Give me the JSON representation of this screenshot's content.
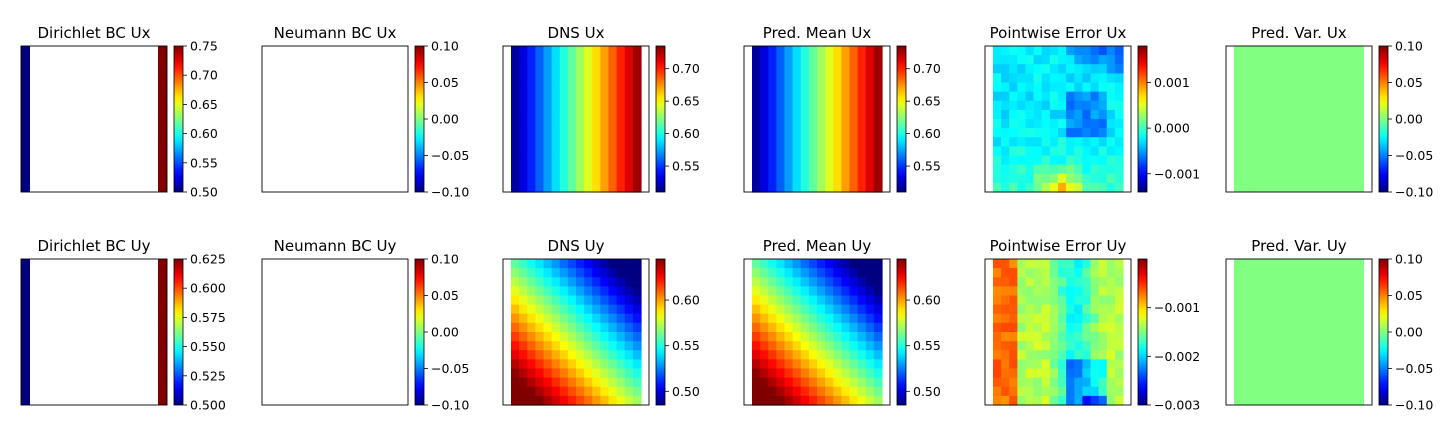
{
  "chart_data": [
    {
      "type": "heatmap",
      "title": "Dirichlet BC Ux",
      "field": "dirichlet",
      "params": {
        "left": 0.5,
        "right": 0.75
      },
      "colorbar": {
        "min": 0.5,
        "max": 0.75,
        "ticks": [
          0.5,
          0.55,
          0.6,
          0.65,
          0.7,
          0.75
        ],
        "tick_labels": [
          "0.50",
          "0.55",
          "0.60",
          "0.65",
          "0.70",
          "0.75"
        ]
      }
    },
    {
      "type": "heatmap",
      "title": "Neumann BC Ux",
      "field": "empty",
      "colorbar": {
        "min": -0.1,
        "max": 0.1,
        "ticks": [
          -0.1,
          -0.05,
          0,
          0.05,
          0.1
        ],
        "tick_labels": [
          "−0.10",
          "−0.05",
          "0.00",
          "0.05",
          "0.10"
        ]
      }
    },
    {
      "type": "heatmap",
      "title": "DNS Ux",
      "field": "linear_x",
      "grid": [
        16,
        16
      ],
      "params": {
        "min": 0.51,
        "max": 0.735
      },
      "colorbar": {
        "min": 0.51,
        "max": 0.735,
        "ticks": [
          0.55,
          0.6,
          0.65,
          0.7
        ],
        "tick_labels": [
          "0.55",
          "0.60",
          "0.65",
          "0.70"
        ]
      }
    },
    {
      "type": "heatmap",
      "title": "Pred. Mean Ux",
      "field": "linear_x",
      "grid": [
        16,
        16
      ],
      "params": {
        "min": 0.51,
        "max": 0.735
      },
      "colorbar": {
        "min": 0.51,
        "max": 0.735,
        "ticks": [
          0.55,
          0.6,
          0.65,
          0.7
        ],
        "tick_labels": [
          "0.55",
          "0.60",
          "0.65",
          "0.70"
        ]
      }
    },
    {
      "type": "heatmap",
      "title": "Pointwise Error Ux",
      "field": "error_ux",
      "grid": [
        16,
        16
      ],
      "colorbar": {
        "min": -0.0014,
        "max": 0.0018,
        "ticks": [
          -0.001,
          0,
          0.001
        ],
        "tick_labels": [
          "−0.001",
          "0.000",
          "0.001"
        ]
      }
    },
    {
      "type": "heatmap",
      "title": "Pred. Var. Ux",
      "field": "constant",
      "params": {
        "value": 0
      },
      "colorbar": {
        "min": -0.1,
        "max": 0.1,
        "ticks": [
          -0.1,
          -0.05,
          0,
          0.05,
          0.1
        ],
        "tick_labels": [
          "−0.10",
          "−0.05",
          "0.00",
          "0.05",
          "0.10"
        ]
      }
    },
    {
      "type": "heatmap",
      "title": "Dirichlet BC Uy",
      "field": "dirichlet",
      "params": {
        "left": 0.5,
        "right": 0.625
      },
      "colorbar": {
        "min": 0.5,
        "max": 0.625,
        "ticks": [
          0.5,
          0.525,
          0.55,
          0.575,
          0.6,
          0.625
        ],
        "tick_labels": [
          "0.500",
          "0.525",
          "0.550",
          "0.575",
          "0.600",
          "0.625"
        ]
      }
    },
    {
      "type": "heatmap",
      "title": "Neumann BC Uy",
      "field": "empty",
      "colorbar": {
        "min": -0.1,
        "max": 0.1,
        "ticks": [
          -0.1,
          -0.05,
          0,
          0.05,
          0.1
        ],
        "tick_labels": [
          "−0.10",
          "−0.05",
          "0.00",
          "0.05",
          "0.10"
        ]
      }
    },
    {
      "type": "heatmap",
      "title": "DNS Uy",
      "field": "diagonal",
      "grid": [
        16,
        16
      ],
      "params": {
        "min": 0.485,
        "max": 0.645
      },
      "colorbar": {
        "min": 0.485,
        "max": 0.645,
        "ticks": [
          0.5,
          0.55,
          0.6
        ],
        "tick_labels": [
          "0.50",
          "0.55",
          "0.60"
        ]
      }
    },
    {
      "type": "heatmap",
      "title": "Pred. Mean Uy",
      "field": "diagonal",
      "grid": [
        16,
        16
      ],
      "params": {
        "min": 0.485,
        "max": 0.645
      },
      "colorbar": {
        "min": 0.485,
        "max": 0.645,
        "ticks": [
          0.5,
          0.55,
          0.6
        ],
        "tick_labels": [
          "0.50",
          "0.55",
          "0.60"
        ]
      }
    },
    {
      "type": "heatmap",
      "title": "Pointwise Error Uy",
      "field": "error_uy",
      "grid": [
        16,
        16
      ],
      "colorbar": {
        "min": -0.003,
        "max": 0,
        "ticks": [
          -0.003,
          -0.002,
          -0.001
        ],
        "tick_labels": [
          "−0.003",
          "−0.002",
          "−0.001"
        ]
      }
    },
    {
      "type": "heatmap",
      "title": "Pred. Var. Uy",
      "field": "constant",
      "params": {
        "value": 0
      },
      "colorbar": {
        "min": -0.1,
        "max": 0.1,
        "ticks": [
          -0.1,
          -0.05,
          0,
          0.05,
          0.1
        ],
        "tick_labels": [
          "−0.10",
          "−0.05",
          "0.00",
          "0.05",
          "0.10"
        ]
      }
    }
  ]
}
